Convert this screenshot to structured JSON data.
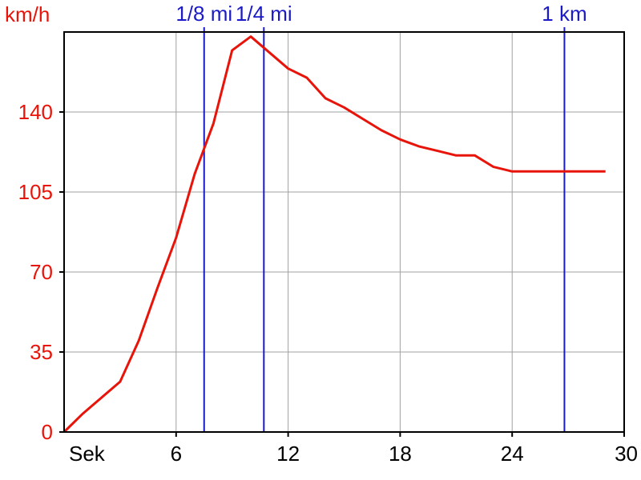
{
  "chart_data": {
    "type": "line",
    "ylabel": "km/h",
    "xlabel": "Sek",
    "xlim": [
      0,
      30
    ],
    "ylim": [
      0,
      175
    ],
    "x_ticks": [
      6,
      12,
      18,
      24,
      30
    ],
    "y_ticks": [
      0,
      35,
      70,
      105,
      140
    ],
    "grid": true,
    "colors": {
      "series": "#e8140a",
      "markers": "#1a1ac8",
      "grid": "#a0a0a0",
      "axis": "#000000"
    },
    "series": [
      {
        "x": [
          0,
          1,
          2,
          3,
          4,
          5,
          6,
          7,
          8,
          9,
          10,
          11,
          12,
          13,
          14,
          15,
          16,
          17,
          18,
          19,
          20,
          21,
          22,
          23,
          24,
          25,
          26,
          27,
          28,
          29
        ],
        "y": [
          0,
          8,
          15,
          22,
          40,
          63,
          85,
          113,
          135,
          167,
          173,
          166,
          159,
          155,
          146,
          142,
          137,
          132,
          128,
          125,
          123,
          121,
          121,
          116,
          114,
          114,
          114,
          114,
          114,
          114
        ]
      }
    ],
    "markers": [
      {
        "label": "1/8 mi",
        "x": 7.5
      },
      {
        "label": "1/4 mi",
        "x": 10.7
      },
      {
        "label": "1 km",
        "x": 26.8
      }
    ]
  }
}
